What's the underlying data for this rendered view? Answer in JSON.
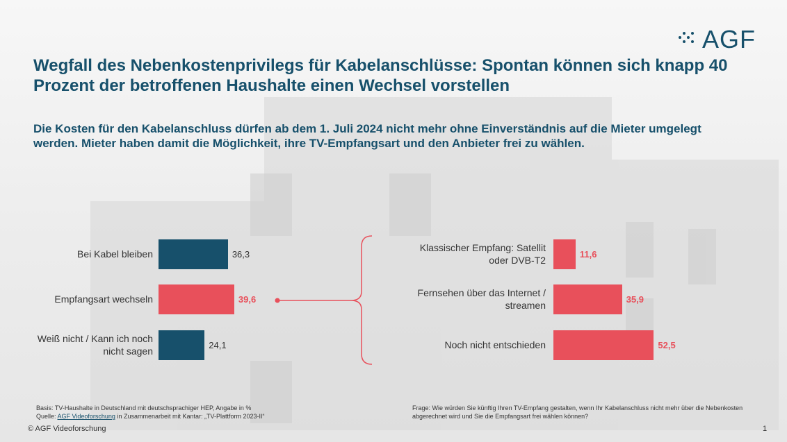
{
  "header": {
    "logo": "AGF",
    "title": "Wegfall des Nebenkostenprivilegs für Kabelanschlüsse: Spontan können sich knapp 40 Prozent der betroffenen Haushalte einen Wechsel vorstellen",
    "subtitle": "Die Kosten für den Kabelanschluss dürfen ab dem 1. Juli 2024 nicht mehr ohne Einverständnis auf die Mieter umgelegt werden. Mieter haben damit die Möglichkeit, ihre TV-Empfangsart und den Anbieter frei zu wählen."
  },
  "chart_data": [
    {
      "type": "bar",
      "categories": [
        "Bei Kabel bleiben",
        "Empfangsart wechseln",
        "Weiß nicht / Kann ich noch nicht sagen"
      ],
      "values": [
        36.3,
        39.6,
        24.1
      ],
      "value_labels": [
        "36,3",
        "39,6",
        "24,1"
      ],
      "colors": [
        "#17506b",
        "#e8505b",
        "#17506b"
      ]
    },
    {
      "type": "bar",
      "categories": [
        "Klassischer Empfang: Satellit oder DVB-T2",
        "Fernsehen über das Internet / streamen",
        "Noch nicht entschieden"
      ],
      "values": [
        11.6,
        35.9,
        52.5
      ],
      "value_labels": [
        "11,6",
        "35,9",
        "52,5"
      ],
      "colors": [
        "#e8505b",
        "#e8505b",
        "#e8505b"
      ]
    }
  ],
  "footer": {
    "basis": "Basis: TV-Haushalte in Deutschland mit deutschsprachiger HEP, Angabe in %",
    "source_prefix": "Quelle:",
    "source_link": "AGF Videoforschung",
    "source_suffix": "in Zusammenarbeit mit Kantar: „TV-Plattform 2023-II“",
    "question": "Frage: Wie würden Sie künftig Ihren TV-Empfang gestalten, wenn Ihr Kabelanschluss nicht mehr über die Nebenkosten abgerechnet wird und Sie die Empfangsart frei wählen können?",
    "copyright": "© AGF Videoforschung",
    "page": "1"
  }
}
